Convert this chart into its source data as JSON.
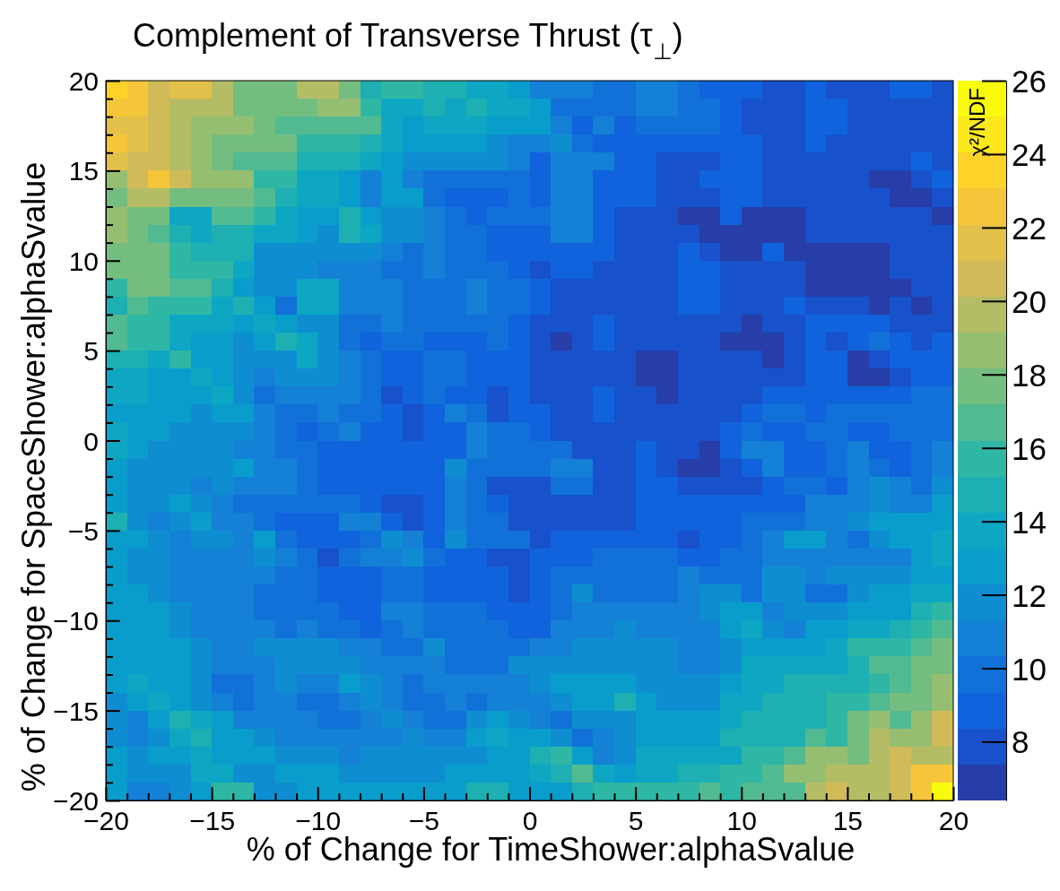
{
  "chart_data": {
    "type": "heatmap",
    "title": "Complement of Transverse Thrust (τ$_{⊥}$)",
    "xlabel": "% of Change for TimeShower:alphaSvalue",
    "ylabel": "% of Change for SpaceShower:alphaSvalue",
    "clabel": "χ²/NDF",
    "xlim": [
      -20,
      20
    ],
    "ylim": [
      -20,
      20
    ],
    "xticks": [
      {
        "value": -20,
        "label": "−20"
      },
      {
        "value": -19,
        "label": null
      },
      {
        "value": -18,
        "label": null
      },
      {
        "value": -17,
        "label": null
      },
      {
        "value": -16,
        "label": null
      },
      {
        "value": -15,
        "label": "−15"
      },
      {
        "value": -14,
        "label": null
      },
      {
        "value": -13,
        "label": null
      },
      {
        "value": -12,
        "label": null
      },
      {
        "value": -11,
        "label": null
      },
      {
        "value": -10,
        "label": "−10"
      },
      {
        "value": -9,
        "label": null
      },
      {
        "value": -8,
        "label": null
      },
      {
        "value": -7,
        "label": null
      },
      {
        "value": -6,
        "label": null
      },
      {
        "value": -5,
        "label": "−5"
      },
      {
        "value": -4,
        "label": null
      },
      {
        "value": -3,
        "label": null
      },
      {
        "value": -2,
        "label": null
      },
      {
        "value": -1,
        "label": null
      },
      0,
      {
        "value": 1,
        "label": null
      },
      {
        "value": 2,
        "label": null
      },
      {
        "value": 3,
        "label": null
      },
      {
        "value": 4,
        "label": null
      },
      5,
      {
        "value": 6,
        "label": null
      },
      {
        "value": 7,
        "label": null
      },
      {
        "value": 8,
        "label": null
      },
      {
        "value": 9,
        "label": null
      },
      10,
      {
        "value": 11,
        "label": null
      },
      {
        "value": 12,
        "label": null
      },
      {
        "value": 13,
        "label": null
      },
      {
        "value": 14,
        "label": null
      },
      15,
      {
        "value": 16,
        "label": null
      },
      {
        "value": 17,
        "label": null
      },
      {
        "value": 18,
        "label": null
      },
      {
        "value": 19,
        "label": null
      },
      20
    ],
    "yticks": [
      {
        "value": -20,
        "label": "−20"
      },
      {
        "value": -19,
        "label": null
      },
      {
        "value": -18,
        "label": null
      },
      {
        "value": -17,
        "label": null
      },
      {
        "value": -16,
        "label": null
      },
      {
        "value": -15,
        "label": "−15"
      },
      {
        "value": -14,
        "label": null
      },
      {
        "value": -13,
        "label": null
      },
      {
        "value": -12,
        "label": null
      },
      {
        "value": -11,
        "label": null
      },
      {
        "value": -10,
        "label": "−10"
      },
      {
        "value": -9,
        "label": null
      },
      {
        "value": -8,
        "label": null
      },
      {
        "value": -7,
        "label": null
      },
      {
        "value": -6,
        "label": null
      },
      {
        "value": -5,
        "label": "−5"
      },
      {
        "value": -4,
        "label": null
      },
      {
        "value": -3,
        "label": null
      },
      {
        "value": -2,
        "label": null
      },
      {
        "value": -1,
        "label": null
      },
      0,
      {
        "value": 1,
        "label": null
      },
      {
        "value": 2,
        "label": null
      },
      {
        "value": 3,
        "label": null
      },
      {
        "value": 4,
        "label": null
      },
      5,
      {
        "value": 6,
        "label": null
      },
      {
        "value": 7,
        "label": null
      },
      {
        "value": 8,
        "label": null
      },
      {
        "value": 9,
        "label": null
      },
      10,
      {
        "value": 11,
        "label": null
      },
      {
        "value": 12,
        "label": null
      },
      {
        "value": 13,
        "label": null
      },
      {
        "value": 14,
        "label": null
      },
      15,
      {
        "value": 16,
        "label": null
      },
      {
        "value": 17,
        "label": null
      },
      {
        "value": 18,
        "label": null
      },
      {
        "value": 19,
        "label": null
      },
      20
    ],
    "clim": [
      6.4,
      26
    ],
    "cticks": [
      8,
      10,
      12,
      14,
      16,
      18,
      20,
      22,
      24,
      26
    ],
    "cells": [
      [
        24,
        23,
        21,
        22,
        22,
        20,
        18,
        18,
        18,
        20,
        20,
        18,
        15,
        16,
        16,
        15,
        15,
        14,
        14,
        13,
        11,
        11,
        11,
        10,
        10,
        11,
        11,
        10,
        9,
        9,
        9,
        8,
        8,
        9,
        8,
        8,
        8,
        9,
        9,
        8
      ],
      [
        23,
        23,
        21,
        20,
        20,
        20,
        18,
        18,
        18,
        18,
        19,
        19,
        16,
        14,
        14,
        15,
        14,
        15,
        14,
        14,
        13,
        10,
        10,
        10,
        10,
        11,
        11,
        10,
        10,
        9,
        8,
        8,
        8,
        9,
        9,
        8,
        8,
        8,
        8,
        8
      ],
      [
        22,
        22,
        21,
        20,
        19,
        19,
        19,
        18,
        17,
        17,
        17,
        17,
        17,
        14,
        13,
        14,
        14,
        14,
        13,
        13,
        13,
        11,
        9,
        11,
        9,
        10,
        10,
        10,
        10,
        9,
        8,
        8,
        8,
        9,
        9,
        8,
        8,
        8,
        8,
        8
      ],
      [
        23,
        22,
        21,
        20,
        19,
        18,
        18,
        18,
        18,
        16,
        16,
        16,
        15,
        14,
        13,
        13,
        13,
        13,
        12,
        11,
        11,
        12,
        10,
        9,
        9,
        9,
        9,
        9,
        9,
        9,
        9,
        8,
        8,
        9,
        8,
        8,
        8,
        8,
        8,
        8
      ],
      [
        22,
        21,
        21,
        20,
        19,
        18,
        17,
        17,
        17,
        15,
        15,
        15,
        14,
        13,
        12,
        12,
        12,
        12,
        12,
        11,
        9,
        11,
        11,
        11,
        9,
        9,
        8,
        8,
        8,
        9,
        9,
        8,
        8,
        8,
        8,
        8,
        8,
        8,
        9,
        8
      ],
      [
        19,
        21,
        23,
        21,
        19,
        19,
        19,
        16,
        16,
        14,
        14,
        13,
        11,
        13,
        11,
        10,
        10,
        10,
        10,
        10,
        9,
        11,
        11,
        9,
        9,
        9,
        8,
        8,
        9,
        9,
        9,
        8,
        8,
        8,
        8,
        8,
        7,
        7,
        8,
        9
      ],
      [
        18,
        20,
        20,
        18,
        18,
        18,
        18,
        17,
        15,
        14,
        14,
        13,
        11,
        13,
        13,
        10,
        9,
        9,
        9,
        10,
        9,
        11,
        11,
        9,
        9,
        9,
        8,
        8,
        8,
        9,
        9,
        8,
        8,
        8,
        8,
        8,
        8,
        7,
        7,
        8
      ],
      [
        19,
        18,
        18,
        14,
        14,
        17,
        17,
        16,
        14,
        13,
        13,
        15,
        13,
        12,
        12,
        11,
        10,
        9,
        10,
        10,
        10,
        11,
        11,
        9,
        8,
        8,
        8,
        7,
        7,
        9,
        7,
        7,
        7,
        8,
        8,
        8,
        8,
        8,
        8,
        7
      ],
      [
        19,
        18,
        17,
        15,
        14,
        15,
        15,
        14,
        14,
        13,
        12,
        15,
        14,
        12,
        12,
        11,
        10,
        10,
        9,
        9,
        9,
        11,
        11,
        9,
        8,
        8,
        8,
        8,
        7,
        7,
        7,
        7,
        7,
        8,
        8,
        8,
        8,
        8,
        8,
        8
      ],
      [
        18,
        18,
        18,
        16,
        15,
        15,
        15,
        12,
        12,
        12,
        12,
        12,
        12,
        11,
        10,
        11,
        10,
        10,
        9,
        9,
        9,
        9,
        9,
        9,
        8,
        8,
        8,
        9,
        8,
        7,
        7,
        9,
        7,
        7,
        7,
        7,
        7,
        8,
        8,
        8
      ],
      [
        18,
        18,
        18,
        16,
        16,
        16,
        14,
        12,
        12,
        12,
        11,
        11,
        11,
        10,
        10,
        11,
        10,
        10,
        10,
        9,
        8,
        9,
        9,
        8,
        8,
        8,
        8,
        9,
        9,
        8,
        8,
        8,
        8,
        7,
        7,
        7,
        7,
        8,
        8,
        8
      ],
      [
        16,
        18,
        18,
        17,
        17,
        15,
        13,
        12,
        12,
        14,
        14,
        11,
        11,
        11,
        10,
        10,
        10,
        11,
        10,
        10,
        9,
        8,
        8,
        8,
        8,
        8,
        8,
        9,
        9,
        8,
        8,
        8,
        8,
        7,
        7,
        7,
        7,
        7,
        8,
        8
      ],
      [
        15,
        17,
        16,
        16,
        16,
        14,
        15,
        13,
        10,
        14,
        14,
        11,
        11,
        11,
        10,
        10,
        10,
        11,
        10,
        10,
        9,
        8,
        8,
        8,
        8,
        8,
        8,
        9,
        9,
        8,
        8,
        8,
        9,
        8,
        8,
        8,
        7,
        8,
        7,
        8
      ],
      [
        17,
        16,
        16,
        14,
        14,
        14,
        13,
        14,
        13,
        12,
        12,
        10,
        10,
        11,
        10,
        10,
        10,
        10,
        10,
        9,
        8,
        8,
        8,
        9,
        8,
        8,
        8,
        8,
        8,
        8,
        7,
        8,
        8,
        9,
        9,
        9,
        9,
        8,
        8,
        8
      ],
      [
        17,
        16,
        16,
        14,
        13,
        13,
        12,
        13,
        15,
        14,
        12,
        10,
        9,
        10,
        10,
        9,
        9,
        9,
        10,
        9,
        8,
        7,
        8,
        9,
        8,
        8,
        8,
        8,
        8,
        7,
        7,
        7,
        8,
        9,
        8,
        9,
        10,
        9,
        8,
        9
      ],
      [
        15,
        15,
        14,
        16,
        13,
        13,
        12,
        12,
        12,
        14,
        12,
        11,
        10,
        9,
        9,
        10,
        10,
        9,
        9,
        9,
        8,
        8,
        8,
        8,
        8,
        7,
        7,
        8,
        8,
        8,
        8,
        7,
        8,
        9,
        9,
        7,
        8,
        9,
        9,
        9
      ],
      [
        14,
        14,
        13,
        13,
        14,
        13,
        12,
        11,
        12,
        12,
        12,
        11,
        10,
        9,
        9,
        10,
        10,
        9,
        9,
        9,
        8,
        8,
        8,
        8,
        8,
        7,
        7,
        8,
        8,
        8,
        8,
        8,
        8,
        9,
        9,
        7,
        7,
        8,
        9,
        9
      ],
      [
        14,
        14,
        13,
        13,
        13,
        14,
        12,
        10,
        11,
        11,
        11,
        11,
        10,
        8,
        9,
        10,
        9,
        9,
        8,
        9,
        8,
        8,
        8,
        9,
        8,
        8,
        7,
        8,
        8,
        8,
        8,
        9,
        9,
        9,
        9,
        9,
        9,
        9,
        10,
        10
      ],
      [
        13,
        13,
        13,
        13,
        12,
        13,
        13,
        11,
        10,
        10,
        11,
        10,
        10,
        9,
        8,
        9,
        11,
        10,
        8,
        9,
        9,
        8,
        8,
        9,
        8,
        8,
        8,
        8,
        8,
        8,
        9,
        10,
        10,
        9,
        10,
        10,
        10,
        10,
        10,
        10
      ],
      [
        14,
        13,
        13,
        12,
        12,
        12,
        12,
        11,
        10,
        9,
        10,
        11,
        9,
        9,
        8,
        9,
        9,
        11,
        10,
        10,
        9,
        8,
        8,
        8,
        8,
        8,
        8,
        8,
        8,
        9,
        10,
        9,
        9,
        10,
        10,
        9,
        9,
        10,
        10,
        10
      ],
      [
        14,
        13,
        12,
        12,
        12,
        12,
        11,
        11,
        10,
        10,
        9,
        9,
        9,
        9,
        9,
        9,
        9,
        11,
        10,
        10,
        10,
        10,
        8,
        8,
        8,
        9,
        8,
        8,
        7,
        9,
        11,
        11,
        9,
        9,
        10,
        11,
        9,
        9,
        10,
        11
      ],
      [
        13,
        12,
        12,
        12,
        12,
        12,
        13,
        11,
        11,
        10,
        9,
        9,
        9,
        9,
        9,
        9,
        12,
        10,
        10,
        10,
        10,
        11,
        11,
        8,
        8,
        9,
        8,
        7,
        7,
        8,
        9,
        11,
        9,
        9,
        10,
        11,
        10,
        9,
        10,
        11
      ],
      [
        13,
        12,
        12,
        12,
        11,
        12,
        11,
        11,
        11,
        10,
        9,
        9,
        9,
        9,
        9,
        9,
        11,
        10,
        8,
        8,
        8,
        10,
        10,
        8,
        8,
        9,
        9,
        8,
        8,
        8,
        8,
        9,
        10,
        10,
        9,
        11,
        12,
        11,
        10,
        12
      ],
      [
        13,
        12,
        12,
        13,
        12,
        11,
        10,
        10,
        10,
        10,
        10,
        10,
        9,
        8,
        8,
        9,
        11,
        10,
        9,
        8,
        8,
        8,
        8,
        8,
        8,
        9,
        9,
        9,
        9,
        9,
        9,
        9,
        9,
        11,
        11,
        11,
        12,
        11,
        11,
        13
      ],
      [
        15,
        12,
        11,
        12,
        13,
        11,
        11,
        10,
        9,
        9,
        9,
        11,
        11,
        9,
        8,
        9,
        11,
        10,
        10,
        8,
        8,
        8,
        8,
        8,
        8,
        9,
        9,
        9,
        9,
        9,
        10,
        10,
        10,
        11,
        11,
        12,
        13,
        13,
        13,
        13
      ],
      [
        13,
        13,
        12,
        11,
        12,
        12,
        11,
        13,
        10,
        9,
        9,
        9,
        10,
        12,
        11,
        9,
        12,
        10,
        10,
        10,
        8,
        9,
        9,
        9,
        9,
        9,
        9,
        8,
        9,
        9,
        10,
        11,
        13,
        13,
        11,
        10,
        12,
        13,
        13,
        14
      ],
      [
        13,
        12,
        12,
        11,
        11,
        11,
        11,
        12,
        11,
        10,
        8,
        10,
        11,
        11,
        12,
        10,
        9,
        9,
        8,
        8,
        9,
        9,
        9,
        10,
        10,
        10,
        10,
        9,
        9,
        10,
        10,
        11,
        11,
        11,
        11,
        11,
        11,
        11,
        13,
        14
      ],
      [
        13,
        12,
        12,
        11,
        11,
        11,
        11,
        11,
        10,
        10,
        9,
        9,
        9,
        10,
        10,
        9,
        9,
        9,
        9,
        8,
        9,
        10,
        10,
        10,
        10,
        10,
        10,
        11,
        10,
        10,
        10,
        12,
        12,
        11,
        12,
        12,
        12,
        12,
        13,
        13
      ],
      [
        13,
        13,
        12,
        11,
        11,
        11,
        11,
        10,
        10,
        10,
        9,
        9,
        9,
        10,
        10,
        9,
        9,
        9,
        9,
        8,
        9,
        10,
        12,
        10,
        10,
        10,
        10,
        11,
        12,
        12,
        10,
        12,
        12,
        10,
        10,
        12,
        13,
        13,
        14,
        14
      ],
      [
        13,
        13,
        13,
        12,
        11,
        11,
        11,
        10,
        10,
        10,
        10,
        9,
        9,
        11,
        11,
        10,
        10,
        10,
        9,
        9,
        9,
        10,
        11,
        11,
        11,
        11,
        11,
        11,
        12,
        13,
        13,
        11,
        12,
        12,
        12,
        13,
        13,
        13,
        15,
        16
      ],
      [
        13,
        13,
        13,
        12,
        11,
        11,
        11,
        11,
        10,
        11,
        10,
        10,
        9,
        10,
        11,
        10,
        10,
        10,
        10,
        9,
        9,
        11,
        11,
        11,
        12,
        11,
        11,
        11,
        11,
        13,
        14,
        12,
        11,
        13,
        13,
        14,
        14,
        15,
        16,
        17
      ],
      [
        13,
        13,
        13,
        13,
        12,
        11,
        11,
        12,
        12,
        12,
        12,
        11,
        11,
        10,
        10,
        12,
        10,
        10,
        10,
        10,
        11,
        11,
        12,
        12,
        12,
        12,
        12,
        11,
        11,
        12,
        13,
        13,
        13,
        13,
        14,
        16,
        16,
        16,
        17,
        18
      ],
      [
        13,
        13,
        13,
        13,
        12,
        11,
        11,
        11,
        12,
        12,
        12,
        12,
        11,
        11,
        11,
        11,
        10,
        10,
        10,
        12,
        12,
        12,
        12,
        12,
        12,
        12,
        12,
        11,
        11,
        12,
        14,
        14,
        14,
        14,
        14,
        15,
        17,
        17,
        18,
        18
      ],
      [
        13,
        14,
        13,
        13,
        12,
        10,
        10,
        11,
        12,
        11,
        11,
        13,
        12,
        11,
        10,
        11,
        11,
        11,
        11,
        11,
        12,
        13,
        13,
        13,
        13,
        12,
        12,
        12,
        12,
        13,
        14,
        14,
        15,
        15,
        15,
        15,
        16,
        17,
        18,
        19
      ],
      [
        12,
        13,
        14,
        13,
        12,
        11,
        10,
        11,
        11,
        10,
        10,
        11,
        12,
        11,
        10,
        10,
        11,
        10,
        11,
        11,
        11,
        12,
        13,
        13,
        15,
        13,
        12,
        12,
        12,
        14,
        14,
        15,
        15,
        15,
        16,
        16,
        17,
        18,
        18,
        19
      ],
      [
        12,
        11,
        13,
        15,
        14,
        13,
        11,
        11,
        11,
        11,
        10,
        10,
        11,
        12,
        11,
        10,
        10,
        12,
        13,
        12,
        11,
        10,
        12,
        12,
        12,
        13,
        13,
        13,
        13,
        14,
        15,
        15,
        15,
        15,
        16,
        18,
        19,
        17,
        19,
        21
      ],
      [
        12,
        11,
        12,
        14,
        15,
        13,
        13,
        12,
        11,
        11,
        11,
        11,
        11,
        11,
        12,
        11,
        11,
        13,
        14,
        13,
        13,
        12,
        10,
        11,
        12,
        13,
        13,
        13,
        13,
        15,
        15,
        15,
        15,
        17,
        16,
        18,
        20,
        19,
        19,
        21
      ],
      [
        13,
        12,
        13,
        13,
        14,
        13,
        13,
        13,
        12,
        12,
        12,
        11,
        12,
        12,
        12,
        12,
        12,
        12,
        13,
        13,
        15,
        16,
        13,
        11,
        12,
        14,
        14,
        14,
        14,
        14,
        16,
        16,
        17,
        19,
        19,
        18,
        20,
        21,
        20,
        20
      ],
      [
        13,
        12,
        12,
        12,
        14,
        14,
        12,
        12,
        13,
        13,
        13,
        12,
        12,
        12,
        12,
        12,
        13,
        13,
        13,
        13,
        14,
        15,
        17,
        14,
        13,
        14,
        14,
        15,
        15,
        16,
        16,
        17,
        19,
        19,
        20,
        20,
        20,
        21,
        23,
        23
      ],
      [
        13,
        11,
        11,
        12,
        13,
        16,
        16,
        12,
        12,
        13,
        13,
        13,
        13,
        13,
        13,
        13,
        13,
        15,
        15,
        13,
        13,
        13,
        15,
        16,
        16,
        16,
        16,
        16,
        17,
        16,
        17,
        17,
        17,
        20,
        21,
        20,
        20,
        21,
        23,
        26
      ]
    ]
  }
}
